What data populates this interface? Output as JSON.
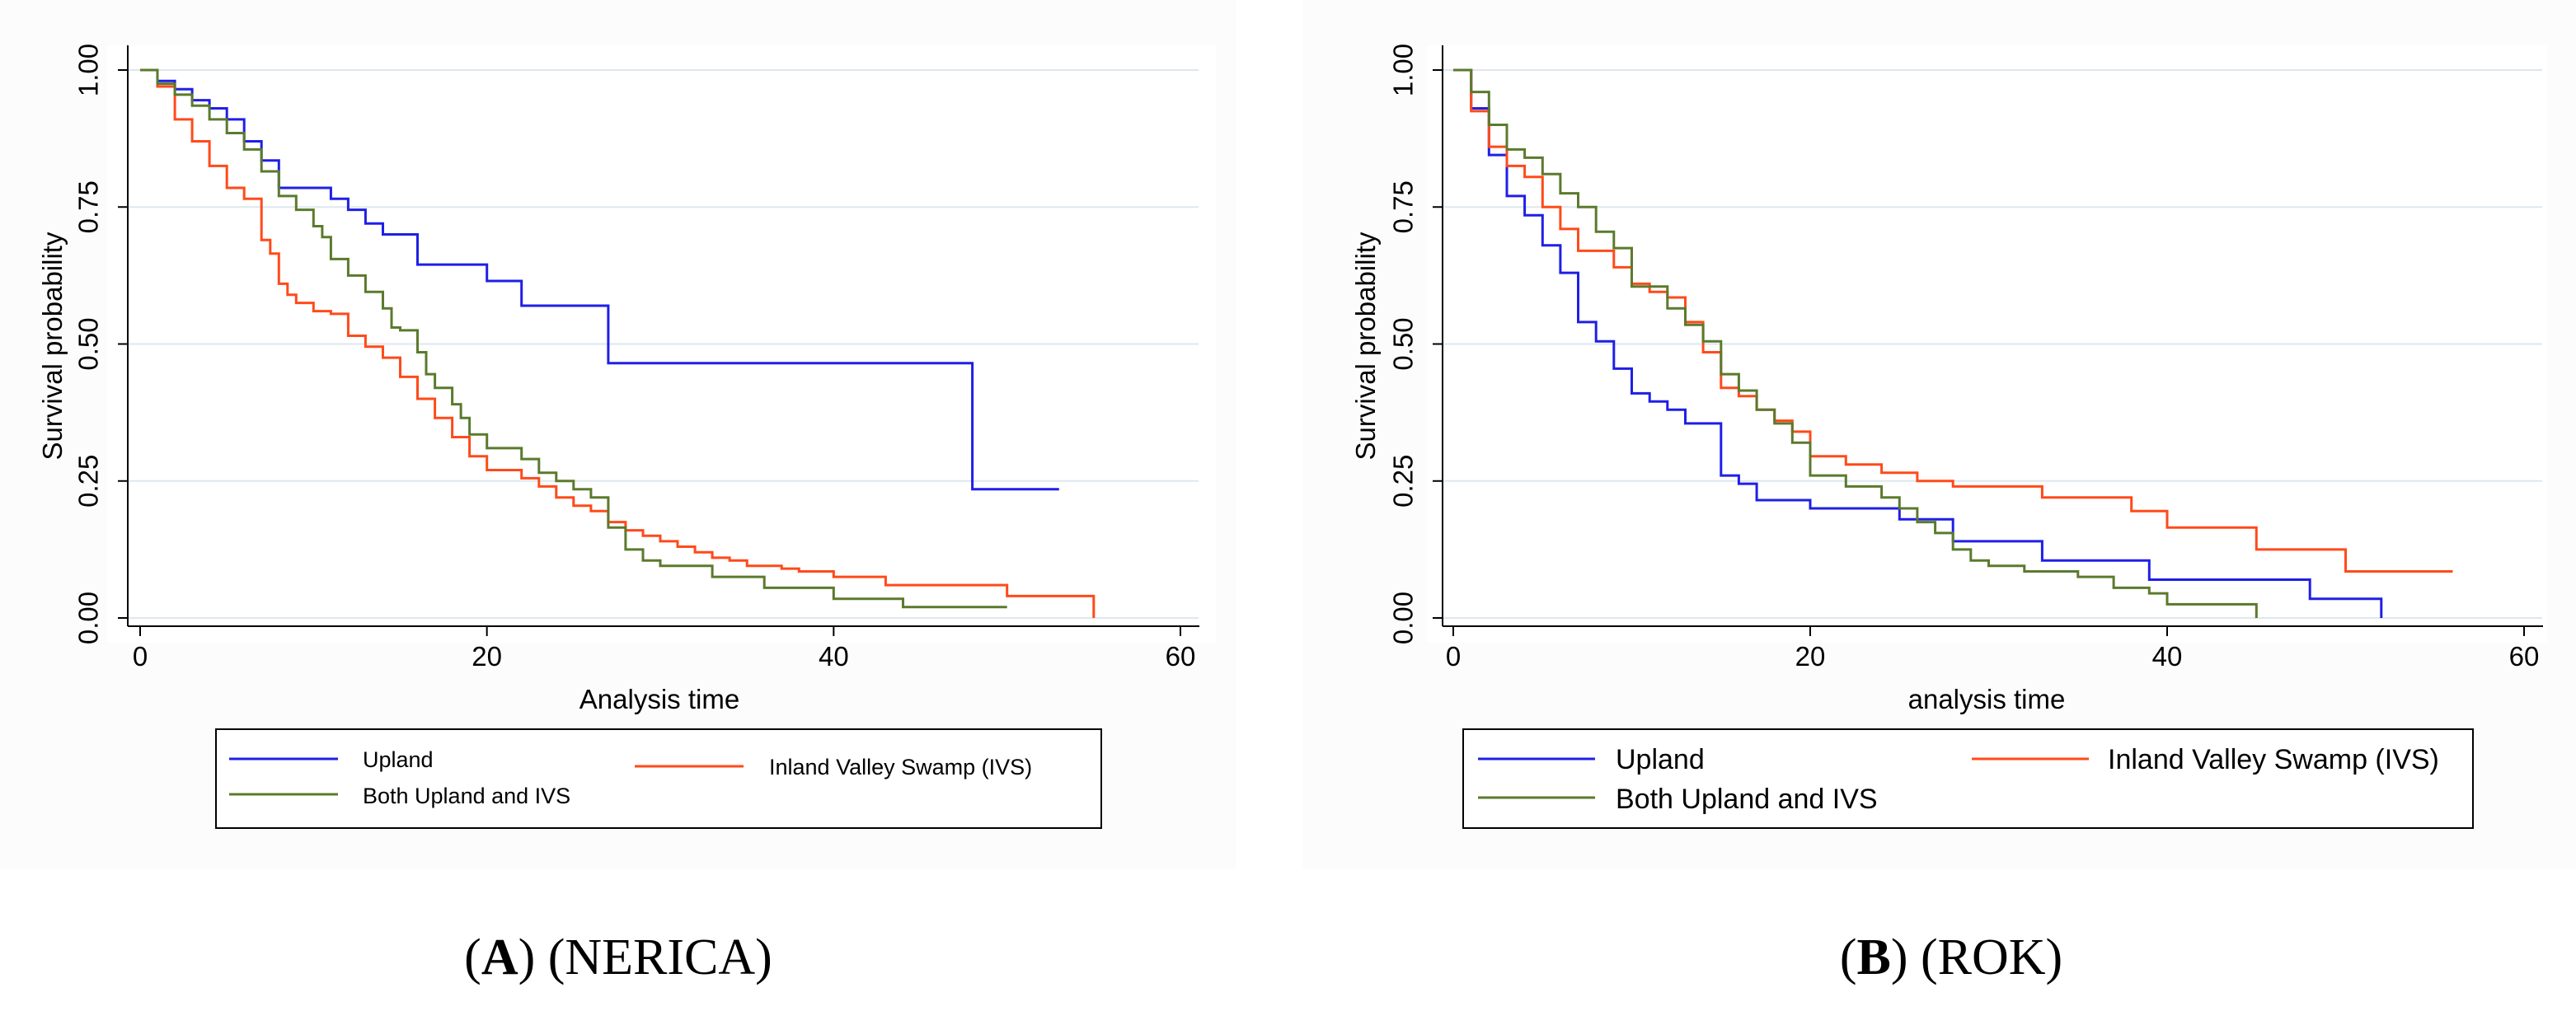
{
  "chart_data": [
    {
      "type": "line",
      "panel": "A",
      "caption": {
        "letter": "A",
        "text": " (NERICA)"
      },
      "xlabel": "Analysis time",
      "ylabel": "Survival probability",
      "xlim": [
        0,
        60
      ],
      "ylim": [
        0,
        1
      ],
      "xticks": [
        "0",
        "20",
        "40",
        "60"
      ],
      "yticks": [
        "0.00",
        "0.25",
        "0.50",
        "0.75",
        "1.00"
      ],
      "grid": true,
      "legend_position": "bottom",
      "series": [
        {
          "name": "Upland",
          "color": "#1f1fe6",
          "x": [
            0,
            1,
            2,
            3,
            4,
            5,
            6,
            7,
            8,
            11,
            12,
            13,
            14,
            16,
            20,
            22,
            27,
            48,
            53
          ],
          "y": [
            1.0,
            0.98,
            0.965,
            0.945,
            0.93,
            0.91,
            0.87,
            0.835,
            0.785,
            0.765,
            0.745,
            0.72,
            0.7,
            0.645,
            0.615,
            0.57,
            0.465,
            0.235,
            0.235
          ]
        },
        {
          "name": "Inland Valley Swamp (IVS)",
          "color": "#ff4a1a",
          "x": [
            0,
            1,
            2,
            3,
            4,
            5,
            6,
            7,
            7.5,
            8,
            8.5,
            9,
            10,
            11,
            12,
            13,
            14,
            15,
            16,
            17,
            18,
            19,
            20,
            22,
            23,
            24,
            25,
            26,
            27,
            28,
            29,
            30,
            31,
            32,
            33,
            34,
            35,
            37,
            38,
            40,
            43,
            47,
            50,
            55
          ],
          "y": [
            1.0,
            0.97,
            0.91,
            0.87,
            0.825,
            0.785,
            0.765,
            0.69,
            0.665,
            0.61,
            0.59,
            0.575,
            0.56,
            0.555,
            0.515,
            0.495,
            0.475,
            0.44,
            0.4,
            0.365,
            0.33,
            0.295,
            0.27,
            0.255,
            0.24,
            0.22,
            0.205,
            0.195,
            0.175,
            0.16,
            0.15,
            0.14,
            0.13,
            0.12,
            0.11,
            0.105,
            0.095,
            0.09,
            0.085,
            0.075,
            0.06,
            0.06,
            0.04,
            0.0
          ]
        },
        {
          "name": "Both Upland and IVS",
          "color": "#5b7a2d",
          "x": [
            0,
            1,
            2,
            3,
            4,
            5,
            6,
            7,
            8,
            9,
            10,
            10.5,
            11,
            12,
            13,
            14,
            14.5,
            15,
            16,
            16.5,
            17,
            18,
            18.5,
            19,
            20,
            22,
            23,
            24,
            25,
            26,
            27,
            28,
            29,
            30,
            33,
            36,
            40,
            44,
            50
          ],
          "y": [
            1.0,
            0.975,
            0.955,
            0.935,
            0.91,
            0.885,
            0.855,
            0.815,
            0.77,
            0.745,
            0.715,
            0.695,
            0.655,
            0.625,
            0.595,
            0.565,
            0.53,
            0.525,
            0.485,
            0.445,
            0.42,
            0.39,
            0.365,
            0.335,
            0.31,
            0.29,
            0.265,
            0.25,
            0.235,
            0.22,
            0.165,
            0.125,
            0.105,
            0.095,
            0.075,
            0.055,
            0.035,
            0.02,
            0.02
          ]
        }
      ]
    },
    {
      "type": "line",
      "panel": "B",
      "caption": {
        "letter": "B",
        "text": " (ROK)"
      },
      "xlabel": "analysis time",
      "ylabel": "Survival probability",
      "xlim": [
        0,
        60
      ],
      "ylim": [
        0,
        1
      ],
      "xticks": [
        "0",
        "20",
        "40",
        "60"
      ],
      "yticks": [
        "0.00",
        "0.25",
        "0.50",
        "0.75",
        "1.00"
      ],
      "grid": true,
      "legend_position": "bottom",
      "series": [
        {
          "name": "Upland",
          "color": "#1f1fe6",
          "x": [
            0,
            1,
            2,
            3,
            4,
            5,
            6,
            7,
            8,
            9,
            10,
            11,
            12,
            13,
            15,
            16,
            17,
            20,
            25,
            28,
            33,
            39,
            48,
            52
          ],
          "y": [
            1.0,
            0.93,
            0.845,
            0.77,
            0.735,
            0.68,
            0.63,
            0.54,
            0.505,
            0.455,
            0.41,
            0.395,
            0.38,
            0.355,
            0.26,
            0.245,
            0.215,
            0.2,
            0.18,
            0.14,
            0.105,
            0.07,
            0.035,
            0.0
          ]
        },
        {
          "name": "Inland Valley Swamp (IVS)",
          "color": "#ff4a1a",
          "x": [
            0,
            1,
            2,
            3,
            4,
            5,
            6,
            7,
            9,
            10,
            11,
            12,
            13,
            14,
            15,
            16,
            17,
            18,
            19,
            20,
            22,
            24,
            26,
            28,
            33,
            38,
            40,
            45,
            50,
            56
          ],
          "y": [
            1.0,
            0.925,
            0.86,
            0.825,
            0.805,
            0.75,
            0.71,
            0.67,
            0.64,
            0.61,
            0.595,
            0.585,
            0.54,
            0.485,
            0.42,
            0.405,
            0.38,
            0.36,
            0.34,
            0.295,
            0.28,
            0.265,
            0.25,
            0.24,
            0.22,
            0.195,
            0.165,
            0.125,
            0.085,
            0.085
          ]
        },
        {
          "name": "Both Upland and IVS",
          "color": "#5b7a2d",
          "x": [
            0,
            1,
            2,
            3,
            4,
            5,
            6,
            7,
            8,
            9,
            10,
            12,
            13,
            14,
            15,
            16,
            17,
            18,
            19,
            20,
            22,
            24,
            25,
            26,
            27,
            28,
            29,
            30,
            32,
            35,
            37,
            39,
            40,
            45
          ],
          "y": [
            1.0,
            0.96,
            0.9,
            0.855,
            0.84,
            0.81,
            0.775,
            0.75,
            0.705,
            0.675,
            0.605,
            0.565,
            0.535,
            0.505,
            0.445,
            0.415,
            0.38,
            0.355,
            0.32,
            0.26,
            0.24,
            0.22,
            0.2,
            0.175,
            0.155,
            0.125,
            0.105,
            0.095,
            0.085,
            0.075,
            0.055,
            0.045,
            0.025,
            0.0
          ]
        }
      ]
    }
  ]
}
